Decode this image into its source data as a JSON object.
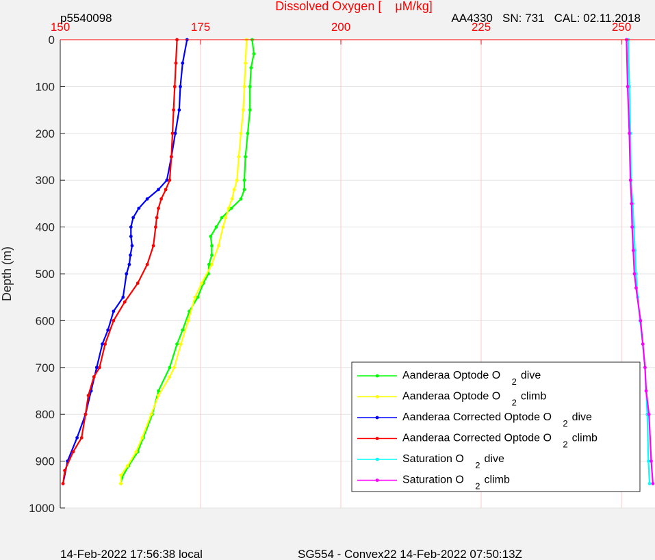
{
  "figure": {
    "header_left": "p5540098",
    "header_right": "AA4330   SN: 731   CAL: 02.11.2018",
    "footer_left": "14-Feb-2022 17:56:38 local",
    "footer_center": "SG554 - Convex22 14-Feb-2022 07:50:13Z"
  },
  "colors": {
    "background": "#f2f2f2",
    "plot_area": "#ffffff",
    "top_axis": "#ff0000",
    "grid_vertical": "#ffc8c8",
    "grid_horizontal": "#e3e3e3",
    "text": "#262626"
  },
  "chart_data": {
    "type": "scatter",
    "title": "",
    "xlabel": "Dissolved Oxygen [    μM/kg]",
    "ylabel": "Depth (m)",
    "xlim": [
      150,
      255
    ],
    "ylim": [
      0,
      1000
    ],
    "y_reversed": true,
    "x_axis_position": "top",
    "x_ticks": [
      "150",
      "175",
      "200",
      "225",
      "250"
    ],
    "y_ticks": [
      "0",
      "100",
      "200",
      "300",
      "400",
      "500",
      "600",
      "700",
      "800",
      "900",
      "1000"
    ],
    "grid": true,
    "legend_position": "bottom-right",
    "series": [
      {
        "name": "Aanderaa Optode O 2 dive",
        "legend_text": "Aanderaa Optode O",
        "legend_sub": "2",
        "legend_suffix": "dive",
        "color": "#00ff00",
        "x": [
          184.2,
          184.5,
          184,
          183.8,
          183.8,
          183.4,
          183,
          182.8,
          182.8,
          182.2,
          180.5,
          178.8,
          177.8,
          176.8,
          177,
          177,
          176.5,
          176.4,
          175.5,
          174.5,
          173,
          171.8,
          170.8,
          169.5,
          167.5,
          166.4,
          164.8,
          163.8,
          162.2,
          161,
          160.8
        ],
        "y": [
          0,
          30,
          60,
          100,
          150,
          200,
          250,
          300,
          320,
          340,
          360,
          380,
          400,
          420,
          440,
          460,
          480,
          500,
          520,
          550,
          580,
          620,
          650,
          700,
          750,
          800,
          850,
          880,
          910,
          935,
          948
        ]
      },
      {
        "name": "Aanderaa Optode O 2 climb",
        "legend_text": "Aanderaa Optode O",
        "legend_sub": "2",
        "legend_suffix": "climb",
        "color": "#ffff00",
        "x": [
          183.2,
          183,
          182.8,
          182.6,
          182.2,
          181.8,
          181.5,
          181,
          180.6,
          180,
          179.5,
          179,
          178.2,
          177,
          175.2,
          174,
          172.8,
          171.5,
          170.3,
          169.5,
          167.5,
          166.2,
          164.6,
          163.5,
          162,
          160.8,
          160.8
        ],
        "y": [
          0,
          50,
          100,
          150,
          200,
          250,
          300,
          320,
          340,
          360,
          380,
          400,
          440,
          480,
          520,
          550,
          600,
          650,
          700,
          720,
          760,
          800,
          850,
          880,
          910,
          930,
          948
        ]
      },
      {
        "name": "Aanderaa Corrected Optode O 2 dive",
        "legend_text": "Aanderaa Corrected Optode O",
        "legend_sub": "2",
        "legend_suffix": "dive",
        "color": "#0000ff",
        "x": [
          172.6,
          171.8,
          171.4,
          171.2,
          170.5,
          169.8,
          169,
          167.5,
          165.5,
          164,
          163,
          162.6,
          162.6,
          162.8,
          162.5,
          162.3,
          161.8,
          161.2,
          159.5,
          158.5,
          157.5,
          156.5,
          155.5,
          154.5,
          153,
          151.3,
          150.5
        ],
        "y": [
          0,
          50,
          100,
          150,
          200,
          250,
          300,
          320,
          340,
          360,
          380,
          400,
          420,
          440,
          460,
          480,
          500,
          550,
          580,
          620,
          650,
          700,
          750,
          800,
          850,
          900,
          948
        ]
      },
      {
        "name": "Aanderaa Corrected Optode O 2 climb",
        "legend_text": "Aanderaa Corrected Optode O",
        "legend_sub": "2",
        "legend_suffix": "climb",
        "color": "#ff0000",
        "x": [
          170.8,
          170.6,
          170.4,
          170.2,
          170,
          169.8,
          169.5,
          168.8,
          168,
          167.5,
          167.2,
          167,
          166.6,
          165.5,
          163.8,
          161.5,
          159.5,
          158,
          157,
          156,
          155,
          154.5,
          153.8,
          152.3,
          150.8,
          150.5
        ],
        "y": [
          0,
          50,
          100,
          150,
          200,
          250,
          300,
          320,
          340,
          360,
          380,
          400,
          440,
          480,
          520,
          560,
          600,
          650,
          700,
          720,
          760,
          800,
          850,
          880,
          920,
          948
        ]
      },
      {
        "name": "Saturation O 2 dive",
        "legend_text": "Saturation O",
        "legend_sub": "2",
        "legend_suffix": "dive",
        "color": "#00ffff",
        "x": [
          251.2,
          251.4,
          251.6,
          251.7,
          252,
          252.2,
          252.4,
          252.6,
          252.9,
          253.3,
          253.8,
          254.2,
          254.6,
          254.8,
          255
        ],
        "y": [
          0,
          100,
          200,
          300,
          350,
          400,
          450,
          500,
          550,
          600,
          650,
          700,
          800,
          900,
          948
        ]
      },
      {
        "name": "Saturation O 2 climb",
        "legend_text": "Saturation O",
        "legend_sub": "2",
        "legend_suffix": "climb",
        "color": "#ff00ff",
        "x": [
          250.9,
          251.1,
          251.4,
          251.6,
          251.8,
          251.9,
          252.1,
          252.3,
          252.6,
          253.4,
          253.8,
          254.2,
          254.4,
          254.9,
          255.3,
          255.6
        ],
        "y": [
          0,
          100,
          200,
          300,
          350,
          400,
          450,
          500,
          530,
          600,
          650,
          700,
          750,
          800,
          900,
          948
        ]
      }
    ]
  }
}
